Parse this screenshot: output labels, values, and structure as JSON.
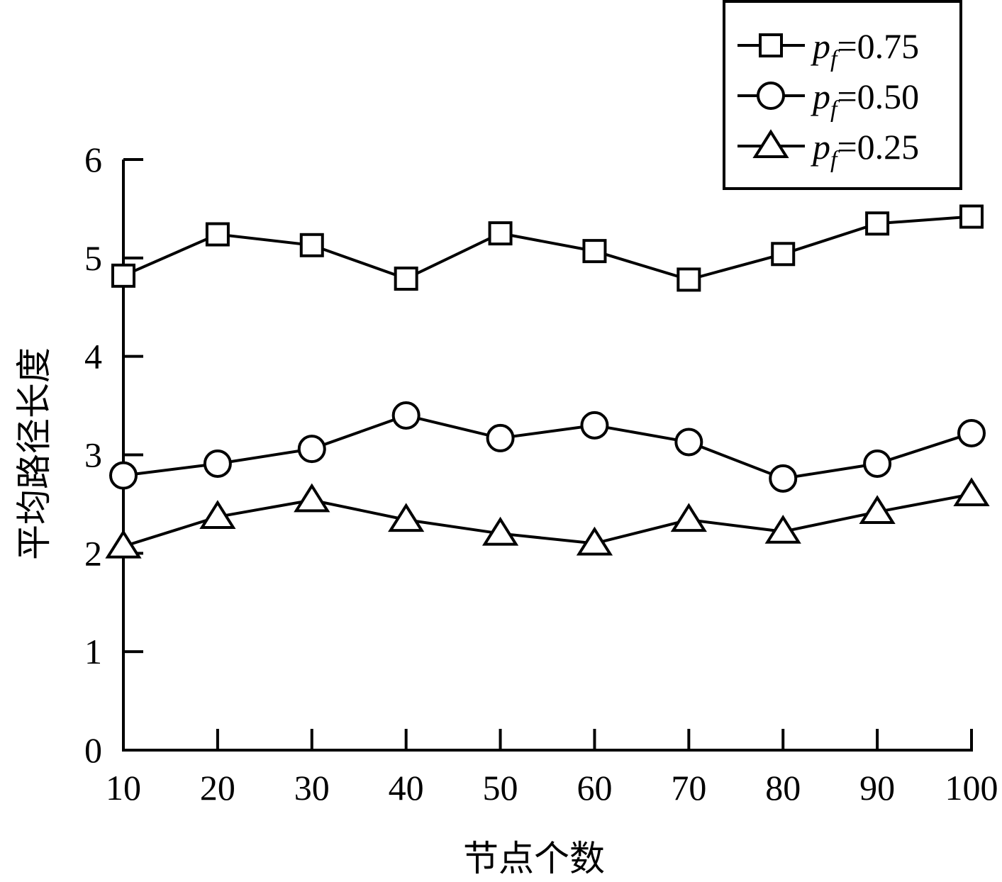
{
  "chart_data": {
    "type": "line",
    "xlabel": "节点个数",
    "ylabel": "平均路径长度",
    "x": [
      10,
      20,
      30,
      40,
      50,
      60,
      70,
      80,
      90,
      100
    ],
    "xlim": [
      10,
      100
    ],
    "ylim": [
      0,
      6
    ],
    "yticks": [
      0,
      1,
      2,
      3,
      4,
      5,
      6
    ],
    "grid": false,
    "legend_position": "top-right",
    "series": [
      {
        "name": "pf=0.75",
        "symbol": "p",
        "subscript": "f",
        "value_text": "=0.75",
        "marker": "square",
        "values": [
          4.82,
          5.24,
          5.13,
          4.79,
          5.25,
          5.07,
          4.78,
          5.04,
          5.35,
          5.42
        ]
      },
      {
        "name": "pf=0.50",
        "symbol": "p",
        "subscript": "f",
        "value_text": "=0.50",
        "marker": "circle",
        "values": [
          2.79,
          2.91,
          3.06,
          3.4,
          3.17,
          3.3,
          3.13,
          2.76,
          2.91,
          3.22
        ]
      },
      {
        "name": "pf=0.25",
        "symbol": "p",
        "subscript": "f",
        "value_text": "=0.25",
        "marker": "triangle",
        "values": [
          2.07,
          2.37,
          2.54,
          2.34,
          2.2,
          2.1,
          2.34,
          2.22,
          2.42,
          2.6
        ]
      }
    ]
  }
}
